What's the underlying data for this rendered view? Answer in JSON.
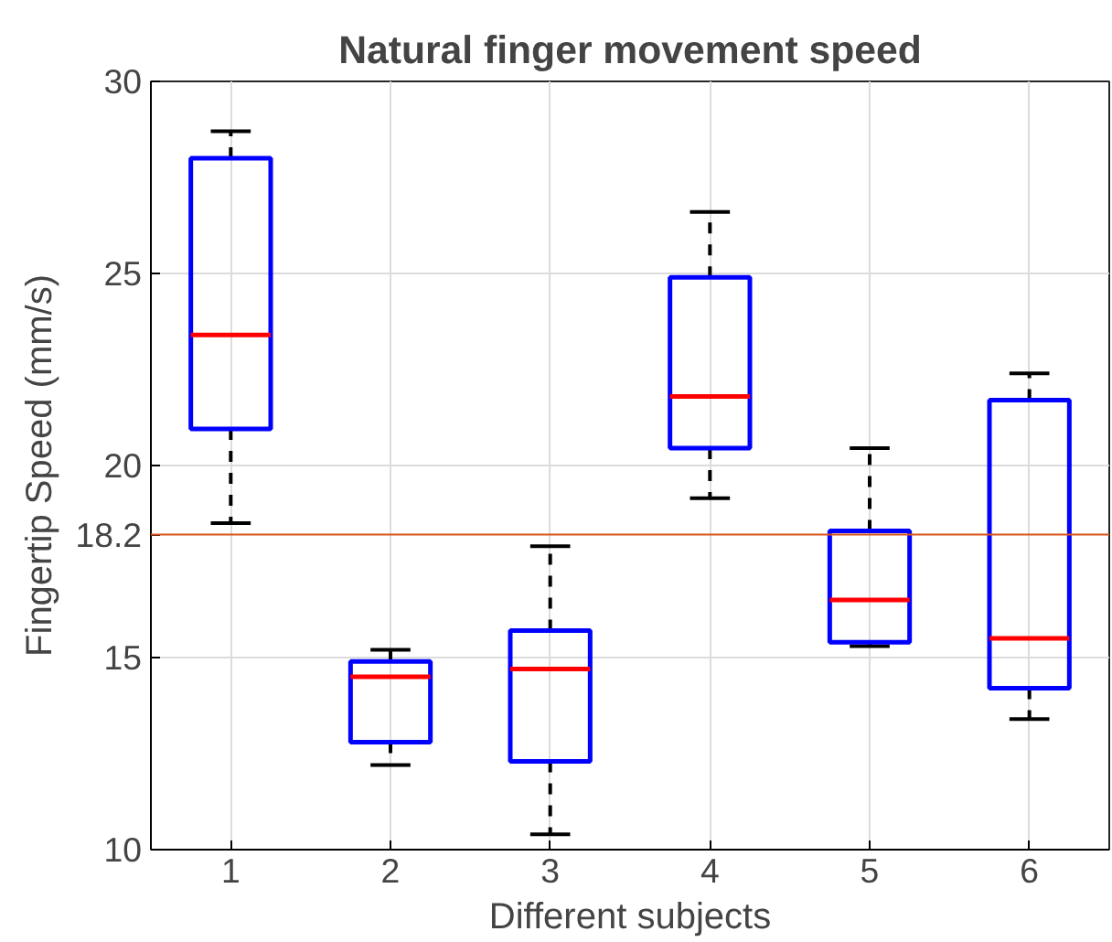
{
  "chart_data": {
    "type": "box",
    "title": "Natural finger movement speed",
    "xlabel": "Different subjects",
    "ylabel": "Fingertip Speed (mm/s)",
    "categories": [
      "1",
      "2",
      "3",
      "4",
      "5",
      "6"
    ],
    "series": [
      {
        "color": "#0000ff",
        "boxes": [
          {
            "low": 18.5,
            "q1": 20.95,
            "median": 23.4,
            "q3": 28.0,
            "high": 28.7
          },
          {
            "low": 12.2,
            "q1": 12.8,
            "median": 14.5,
            "q3": 14.9,
            "high": 15.2
          },
          {
            "low": 10.4,
            "q1": 12.3,
            "median": 14.7,
            "q3": 15.7,
            "high": 17.9
          },
          {
            "low": 19.15,
            "q1": 20.45,
            "median": 21.8,
            "q3": 24.9,
            "high": 26.6
          },
          {
            "low": 15.3,
            "q1": 15.4,
            "median": 16.5,
            "q3": 18.3,
            "high": 20.45
          },
          {
            "low": 13.4,
            "q1": 14.2,
            "median": 15.5,
            "q3": 21.7,
            "high": 22.4
          }
        ]
      }
    ],
    "ylim": [
      10,
      30
    ],
    "yticks": [
      10,
      15,
      20,
      25,
      30
    ],
    "grid": true,
    "ref_lines": [
      {
        "axis": "y",
        "value": 18.2,
        "label": "18.2",
        "color": "#d95319"
      }
    ]
  }
}
